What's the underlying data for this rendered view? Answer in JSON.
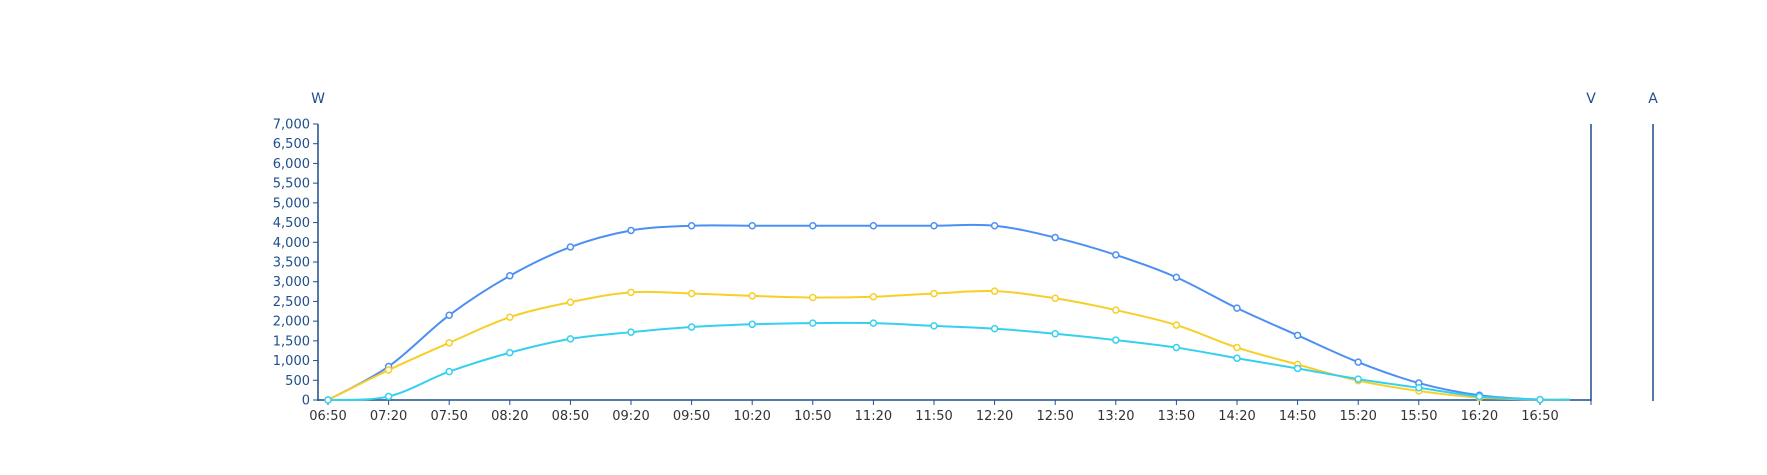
{
  "chart_data": {
    "type": "line",
    "units": {
      "left": "W",
      "right1": "V",
      "right2": "A"
    },
    "ylim": [
      0,
      7000
    ],
    "yticks": [
      0,
      500,
      1000,
      1500,
      2000,
      2500,
      3000,
      3500,
      4000,
      4500,
      5000,
      5500,
      6000,
      6500,
      7000
    ],
    "ytick_labels": [
      "0",
      "500",
      "1,000",
      "1,500",
      "2,000",
      "2,500",
      "3,000",
      "3,500",
      "4,000",
      "4,500",
      "5,000",
      "5,500",
      "6,000",
      "6,500",
      "7,000"
    ],
    "xtick_labels": [
      "06:50",
      "07:20",
      "07:50",
      "08:20",
      "08:50",
      "09:20",
      "09:50",
      "10:20",
      "10:50",
      "11:20",
      "11:50",
      "12:20",
      "12:50",
      "13:20",
      "13:50",
      "14:20",
      "14:50",
      "15:20",
      "15:50",
      "16:20",
      "16:50"
    ],
    "x": [
      "06:50",
      "07:20",
      "07:50",
      "08:20",
      "08:50",
      "09:20",
      "09:50",
      "10:20",
      "10:50",
      "11:20",
      "11:50",
      "12:20",
      "12:50",
      "13:20",
      "13:50",
      "14:20",
      "14:50",
      "15:20",
      "15:50",
      "16:20",
      "16:50"
    ],
    "series": [
      {
        "color": "#4b8ff5",
        "values": [
          0,
          850,
          2150,
          3150,
          3880,
          4300,
          4420,
          4420,
          4420,
          4420,
          4420,
          4420,
          4120,
          3680,
          3110,
          2330,
          1640,
          960,
          430,
          120,
          10
        ]
      },
      {
        "color": "#f7cf28",
        "values": [
          0,
          760,
          1450,
          2100,
          2480,
          2730,
          2700,
          2640,
          2600,
          2620,
          2700,
          2760,
          2580,
          2280,
          1900,
          1330,
          900,
          490,
          230,
          60,
          10
        ]
      },
      {
        "color": "#36d0ef",
        "values": [
          0,
          90,
          720,
          1200,
          1550,
          1720,
          1850,
          1920,
          1950,
          1950,
          1880,
          1810,
          1680,
          1520,
          1330,
          1060,
          800,
          530,
          310,
          90,
          10
        ]
      }
    ],
    "grid": false,
    "legend": "none"
  }
}
